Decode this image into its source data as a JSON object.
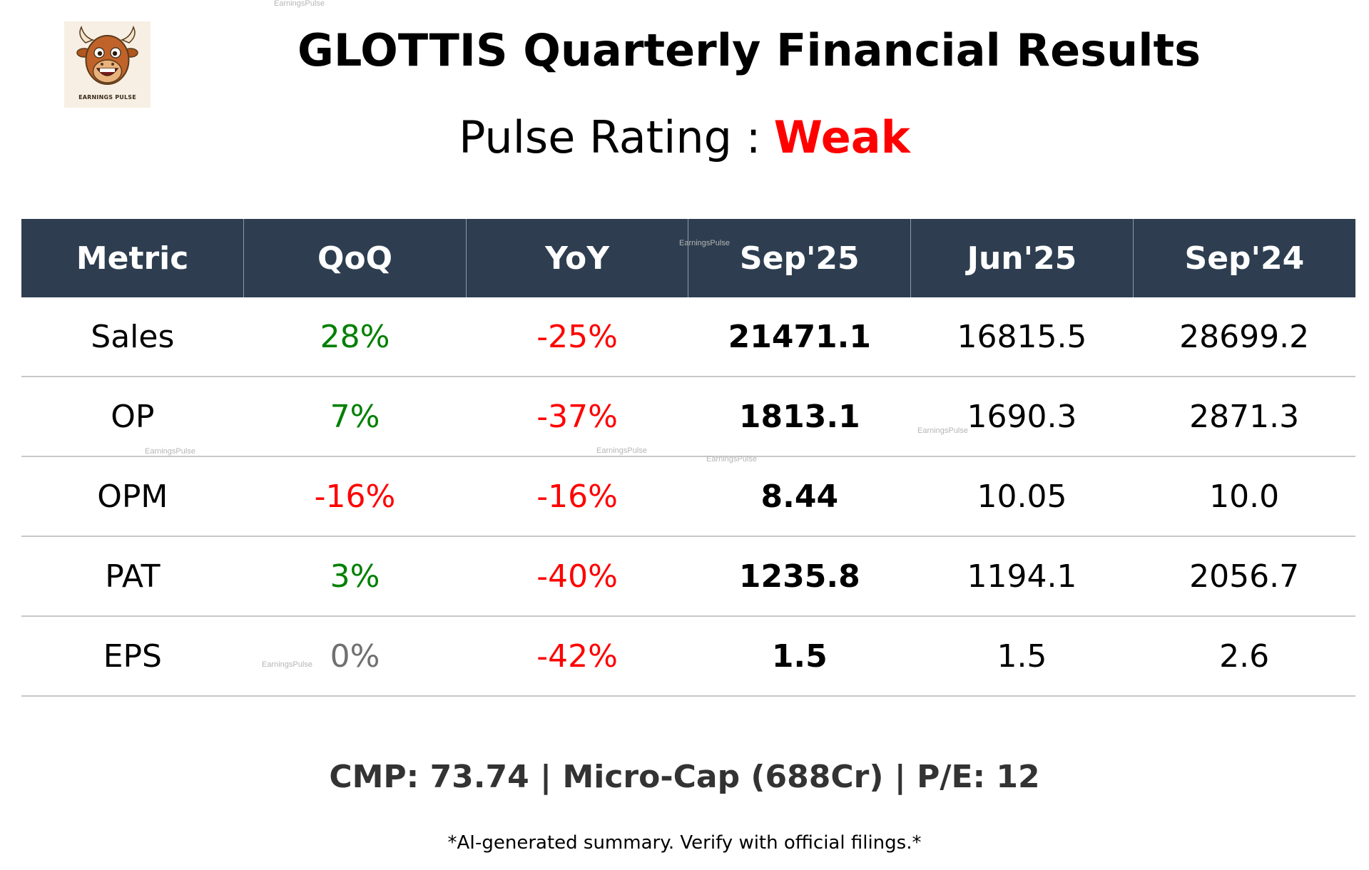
{
  "logo": {
    "text": "EARNINGS PULSE",
    "icon": "bull-mascot-icon"
  },
  "title": "GLOTTIS Quarterly Financial Results",
  "rating": {
    "label": "Pulse Rating :",
    "value": "Weak",
    "value_color": "#ff0000"
  },
  "table": {
    "headers": [
      "Metric",
      "QoQ",
      "YoY",
      "Sep'25",
      "Jun'25",
      "Sep'24"
    ],
    "header_bg": "#2e3e50",
    "rows": [
      {
        "metric": "Sales",
        "qoq": "28%",
        "qoq_trend": "pos",
        "yoy": "-25%",
        "yoy_trend": "neg",
        "sep25": "21471.1",
        "jun25": "16815.5",
        "sep24": "28699.2"
      },
      {
        "metric": "OP",
        "qoq": "7%",
        "qoq_trend": "pos",
        "yoy": "-37%",
        "yoy_trend": "neg",
        "sep25": "1813.1",
        "jun25": "1690.3",
        "sep24": "2871.3"
      },
      {
        "metric": "OPM",
        "qoq": "-16%",
        "qoq_trend": "neg",
        "yoy": "-16%",
        "yoy_trend": "neg",
        "sep25": "8.44",
        "jun25": "10.05",
        "sep24": "10.0"
      },
      {
        "metric": "PAT",
        "qoq": "3%",
        "qoq_trend": "pos",
        "yoy": "-40%",
        "yoy_trend": "neg",
        "sep25": "1235.8",
        "jun25": "1194.1",
        "sep24": "2056.7"
      },
      {
        "metric": "EPS",
        "qoq": "0%",
        "qoq_trend": "neu",
        "yoy": "-42%",
        "yoy_trend": "neg",
        "sep25": "1.5",
        "jun25": "1.5",
        "sep24": "2.6"
      }
    ],
    "colors": {
      "pos": "#008000",
      "neg": "#ff0000",
      "neu": "#707070"
    }
  },
  "footer": {
    "summary": "CMP: 73.74 | Micro-Cap (688Cr) | P/E: 12",
    "disclaimer": "*AI-generated summary. Verify with official filings.*"
  },
  "watermark": "EarningsPulse"
}
